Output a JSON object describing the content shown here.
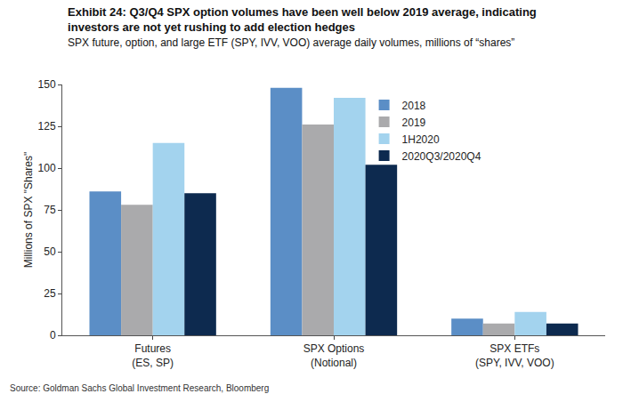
{
  "chart_data": {
    "type": "bar",
    "title": "Exhibit 24: Q3/Q4 SPX option volumes have been well below 2019 average, indicating\ninvestors are not yet rushing to add election hedges",
    "subtitle": "SPX future, option, and large ETF (SPY, IVV, VOO) average daily volumes, millions of “shares”",
    "y_label": "Millions of SPX \"Shares\"",
    "source": "Source: Goldman Sachs Global Investment Research, Bloomberg",
    "categories": [
      "Futures\n(ES, SP)",
      "SPX Options\n(Notional)",
      "SPX ETFs\n(SPY, IVV, VOO)"
    ],
    "series": [
      {
        "name": "2018",
        "color": "#5b8ec6",
        "values": [
          86,
          148,
          10
        ]
      },
      {
        "name": "2019",
        "color": "#aaaaac",
        "values": [
          78,
          126,
          7
        ]
      },
      {
        "name": "1H2020",
        "color": "#a3d3ee",
        "values": [
          115,
          142,
          14
        ]
      },
      {
        "name": "2020Q3/2020Q4",
        "color": "#0d2a4f",
        "values": [
          85,
          102,
          7
        ]
      }
    ],
    "ylim": [
      0,
      150
    ],
    "yticks": [
      0,
      25,
      50,
      75,
      100,
      125,
      150
    ],
    "grid": false,
    "legend": "top right"
  }
}
